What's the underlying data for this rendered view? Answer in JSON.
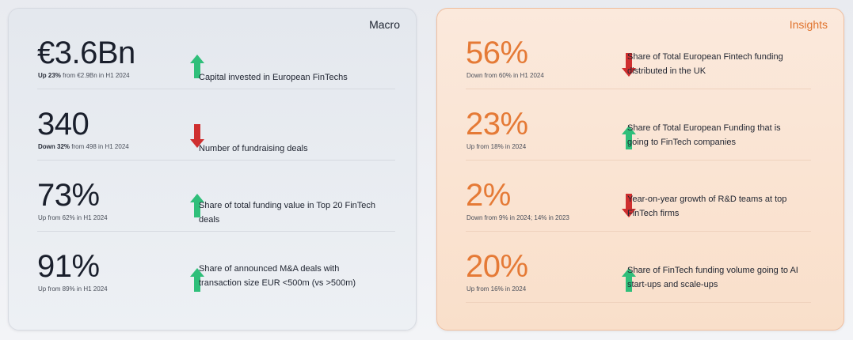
{
  "macro": {
    "title": "Macro",
    "rows": [
      {
        "value": "€3.6Bn",
        "sub_bold": "Up 23%",
        "sub_rest": " from €2.9Bn in H1 2024",
        "description": "Capital invested in European FinTechs",
        "trend": "up"
      },
      {
        "value": "340",
        "sub_bold": "Down 32%",
        "sub_rest": " from 498 in H1 2024",
        "description": "Number of fundraising deals",
        "trend": "down"
      },
      {
        "value": "73%",
        "sub_bold": "",
        "sub_rest": "Up from 62% in H1 2024",
        "description": "Share of total funding value in Top 20 FinTech deals",
        "trend": "up"
      },
      {
        "value": "91%",
        "sub_bold": "",
        "sub_rest": "Up from 89% in H1 2024",
        "description": "Share of announced M&A deals with transaction size EUR <500m (vs >500m)",
        "trend": "up"
      }
    ]
  },
  "insights": {
    "title": "Insights",
    "rows": [
      {
        "value": "56%",
        "sub_bold": "",
        "sub_rest": "Down from 60% in H1 2024",
        "description": "Share of Total European Fintech funding distributed in the UK",
        "trend": "down"
      },
      {
        "value": "23%",
        "sub_bold": "",
        "sub_rest": "Up from 18% in 2024",
        "description": "Share of Total European Funding that is going to FinTech companies",
        "trend": "up"
      },
      {
        "value": "2%",
        "sub_bold": "",
        "sub_rest": "Down from 9% in 2024; 14% in 2023",
        "description": "Year-on-year growth of R&D teams at top FinTech firms",
        "trend": "down"
      },
      {
        "value": "20%",
        "sub_bold": "",
        "sub_rest": "Up from 16% in 2024",
        "description": "Share of FinTech funding volume going to AI start-ups and scale-ups",
        "trend": "up"
      }
    ]
  },
  "colors": {
    "up_arrow": "#2fbf7a",
    "down_arrow": "#cf2f2f",
    "macro_value": "#1a1f2c",
    "insights_value": "#e57a36",
    "insights_title": "#e0732c"
  },
  "icons": {
    "up": "arrow-up-icon",
    "down": "arrow-down-icon"
  }
}
